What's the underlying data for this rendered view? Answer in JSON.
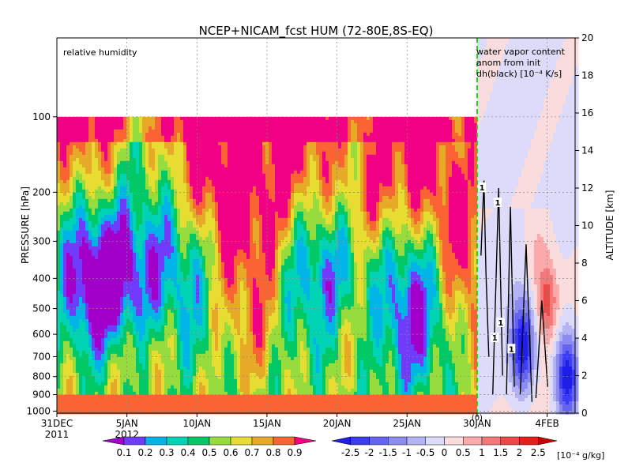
{
  "chart_data": {
    "type": "heatmap",
    "title": "NCEP+NICAM_fcst HUM (72-80E,8S-EQ)",
    "left_panel_label": "relative humidity",
    "right_panel_label_lines": [
      "water vapor content",
      "anom from init",
      "dh(black) [10⁻⁴ K/s]"
    ],
    "ylabel_left": "PRESSURE [hPa]",
    "ylabel_right": "ALTITUDE [km]",
    "x_ticks": [
      {
        "label": "31DEC",
        "day": 0,
        "sub": "2011"
      },
      {
        "label": "5JAN",
        "day": 5,
        "sub": "2012"
      },
      {
        "label": "10JAN",
        "day": 10,
        "sub": ""
      },
      {
        "label": "15JAN",
        "day": 15,
        "sub": ""
      },
      {
        "label": "20JAN",
        "day": 20,
        "sub": ""
      },
      {
        "label": "25JAN",
        "day": 25,
        "sub": ""
      },
      {
        "label": "30JAN",
        "day": 30,
        "sub": ""
      },
      {
        "label": "4FEB",
        "day": 35,
        "sub": ""
      }
    ],
    "x_range_days": [
      0,
      37
    ],
    "forecast_start_day": 30,
    "forecast_start_label": "(0)",
    "pressure_ticks": [
      100,
      200,
      300,
      400,
      500,
      600,
      700,
      800,
      900,
      1000
    ],
    "pressure_top": 100,
    "altitude_range_km": [
      0,
      20
    ],
    "altitude_ticks": [
      0,
      2,
      4,
      6,
      8,
      10,
      12,
      14,
      16,
      18,
      20
    ],
    "rh_levels": [
      "0.1",
      "0.2",
      "0.3",
      "0.4",
      "0.5",
      "0.6",
      "0.7",
      "0.8",
      "0.9"
    ],
    "rh_colors": [
      "#a000c8",
      "#6e3cfa",
      "#00b4e6",
      "#00d2b4",
      "#00c864",
      "#96dc3c",
      "#e6dc32",
      "#e6aa28",
      "#fa6432",
      "#f00082"
    ],
    "anom_levels": [
      "-2.5",
      "-2",
      "-1.5",
      "-1",
      "-0.5",
      "0",
      "0.5",
      "1",
      "1.5",
      "2",
      "2.5"
    ],
    "anom_colors": [
      "#1e1ee6",
      "#3c3cf0",
      "#6464f0",
      "#8c8cf0",
      "#b4b4f5",
      "#dcdcfa",
      "#fadcdc",
      "#faaaaa",
      "#f57878",
      "#f04646",
      "#e61e1e",
      "#c80000"
    ],
    "anom_unit": "[10⁻⁴ g/kg]",
    "grid": true,
    "contour_labels": [
      "1",
      "1",
      "1",
      "1",
      "1"
    ]
  }
}
